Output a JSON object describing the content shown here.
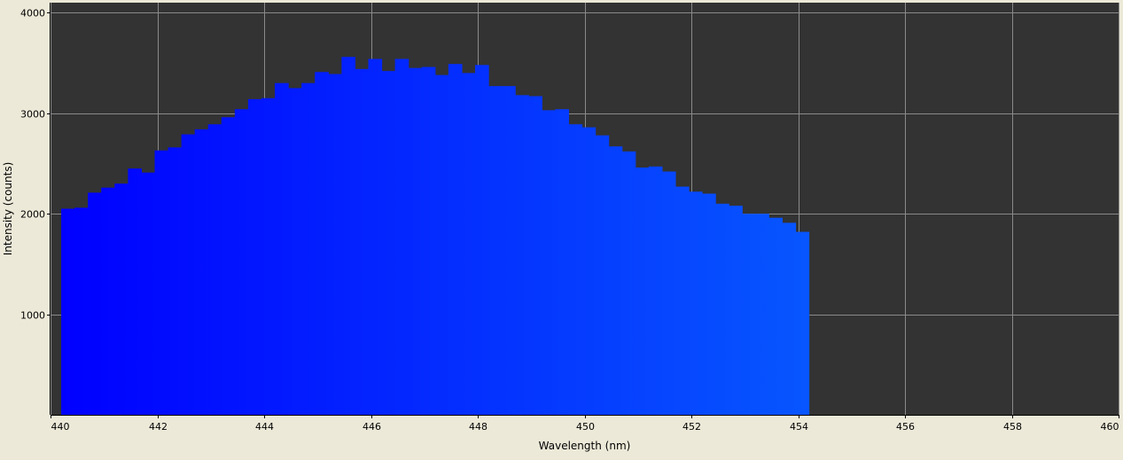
{
  "chart_data": {
    "type": "bar",
    "xlabel": "Wavelength (nm)",
    "ylabel": "Intensity (counts)",
    "xlim": [
      440,
      460
    ],
    "ylim": [
      0,
      4100
    ],
    "xticks": [
      440,
      442,
      444,
      446,
      448,
      450,
      452,
      454,
      456,
      458,
      460
    ],
    "yticks": [
      1000,
      2000,
      3000,
      4000
    ],
    "grid": true,
    "bin_start": 440.2,
    "bin_width": 0.25,
    "values": [
      2050,
      2060,
      2210,
      2260,
      2300,
      2450,
      2410,
      2630,
      2660,
      2790,
      2840,
      2890,
      2960,
      3040,
      3140,
      3150,
      3300,
      3250,
      3300,
      3410,
      3390,
      3560,
      3440,
      3540,
      3420,
      3540,
      3450,
      3460,
      3380,
      3490,
      3400,
      3480,
      3270,
      3270,
      3180,
      3170,
      3030,
      3040,
      2890,
      2860,
      2780,
      2670,
      2620,
      2460,
      2470,
      2420,
      2270,
      2220,
      2200,
      2100,
      2080,
      2000,
      2000,
      1960,
      1910,
      1820
    ],
    "colors": {
      "plot_background": "#333333",
      "page_background": "#ece9d8",
      "grid": "#8a8a8a",
      "bar_start": "#0000ff",
      "bar_end": "#0a7aff"
    }
  }
}
